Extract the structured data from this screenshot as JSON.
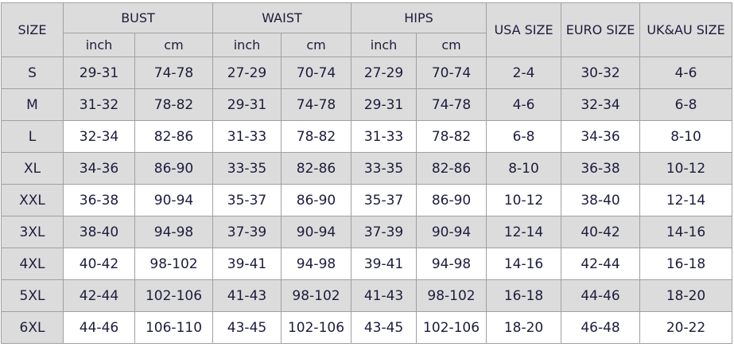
{
  "header": {
    "size": "SIZE",
    "groups": [
      "BUST",
      "WAIST",
      "HIPS"
    ],
    "units": [
      "inch",
      "cm",
      "inch",
      "cm",
      "inch",
      "cm"
    ],
    "usa": "USA SIZE",
    "euro": "EURO SIZE",
    "ukau": "UK&AU SIZE"
  },
  "table": {
    "rows": [
      [
        "S",
        "29-31",
        "74-78",
        "27-29",
        "70-74",
        "27-29",
        "70-74",
        "2-4",
        "30-32",
        "4-6"
      ],
      [
        "M",
        "31-32",
        "78-82",
        "29-31",
        "74-78",
        "29-31",
        "74-78",
        "4-6",
        "32-34",
        "6-8"
      ],
      [
        "L",
        "32-34",
        "82-86",
        "31-33",
        "78-82",
        "31-33",
        "78-82",
        "6-8",
        "34-36",
        "8-10"
      ],
      [
        "XL",
        "34-36",
        "86-90",
        "33-35",
        "82-86",
        "33-35",
        "82-86",
        "8-10",
        "36-38",
        "10-12"
      ],
      [
        "XXL",
        "36-38",
        "90-94",
        "35-37",
        "86-90",
        "35-37",
        "86-90",
        "10-12",
        "38-40",
        "12-14"
      ],
      [
        "3XL",
        "38-40",
        "94-98",
        "37-39",
        "90-94",
        "37-39",
        "90-94",
        "12-14",
        "40-42",
        "14-16"
      ],
      [
        "4XL",
        "40-42",
        "98-102",
        "39-41",
        "94-98",
        "39-41",
        "94-98",
        "14-16",
        "42-44",
        "16-18"
      ],
      [
        "5XL",
        "42-44",
        "102-106",
        "41-43",
        "98-102",
        "41-43",
        "98-102",
        "16-18",
        "44-46",
        "18-20"
      ],
      [
        "6XL",
        "44-46",
        "106-110",
        "43-45",
        "102-106",
        "43-45",
        "102-106",
        "18-20",
        "46-48",
        "20-22"
      ]
    ]
  }
}
